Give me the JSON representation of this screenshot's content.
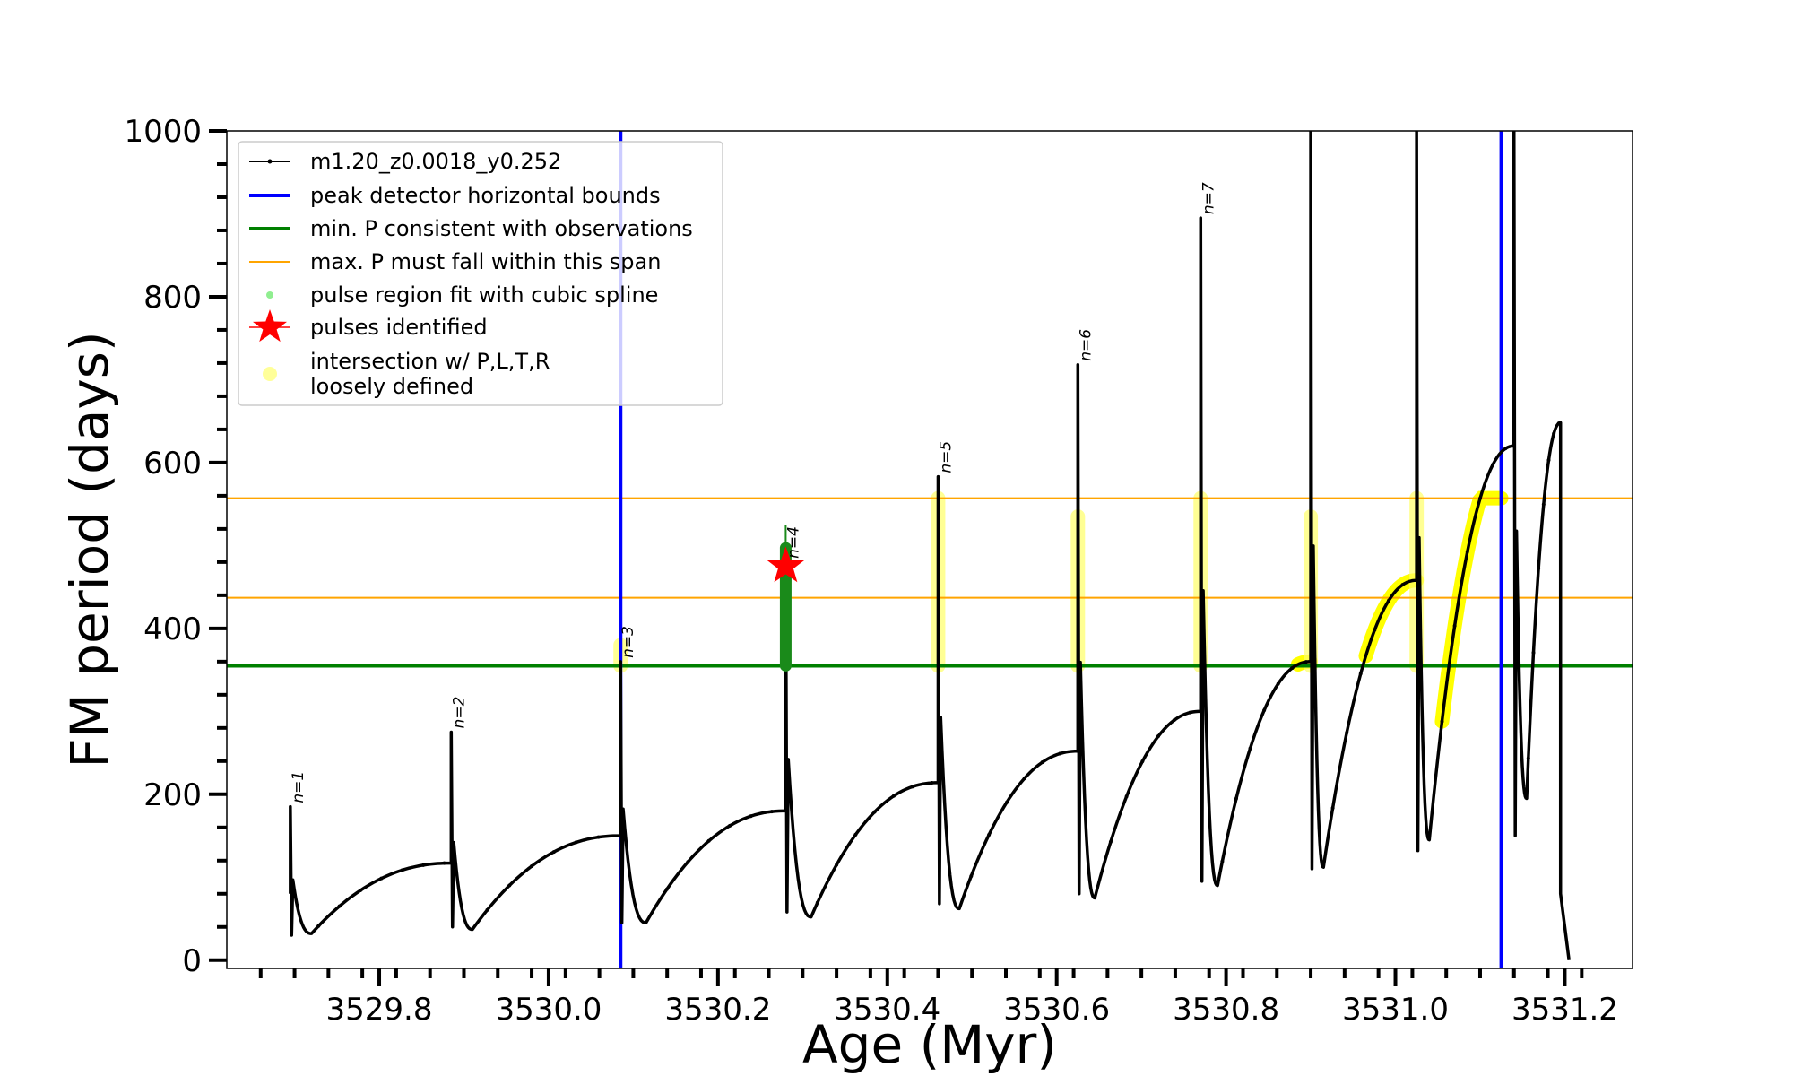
{
  "chart_data": {
    "type": "line",
    "title": "",
    "xlabel": "Age (Myr)",
    "ylabel": "FM period (days)",
    "xlim": [
      3529.62,
      3531.28
    ],
    "ylim": [
      -10,
      1000
    ],
    "x_ticks": [
      3529.8,
      3530.0,
      3530.2,
      3530.4,
      3530.6,
      3530.8,
      3531.0,
      3531.2
    ],
    "x_tick_labels": [
      "3529.8",
      "3530.0",
      "3530.2",
      "3530.4",
      "3530.6",
      "3530.8",
      "3531.0",
      "3531.2"
    ],
    "y_ticks": [
      0,
      200,
      400,
      600,
      800,
      1000
    ],
    "y_tick_labels": [
      "0",
      "200",
      "400",
      "600",
      "800",
      "1000"
    ],
    "grid": false,
    "legend_position": "top-left",
    "legend": [
      {
        "label": "m1.20_z0.0018_y0.252",
        "marker": "line-dot",
        "color": "#000000"
      },
      {
        "label": "peak detector horizontal bounds",
        "marker": "line",
        "color": "#0000ff"
      },
      {
        "label": "min. P consistent with observations",
        "marker": "line",
        "color": "#008000"
      },
      {
        "label": "max. P must fall within this span",
        "marker": "thin-line",
        "color": "#ffa500"
      },
      {
        "label": "pulse region fit with cubic spline",
        "marker": "dot",
        "color": "#90ee90"
      },
      {
        "label": "pulses identified",
        "marker": "star",
        "color": "#ff0000"
      },
      {
        "label": "intersection w/ P,L,T,R",
        "label2": "loosely defined",
        "marker": "dot",
        "color": "#ffff99"
      }
    ],
    "series_name": "m1.20_z0.0018_y0.252",
    "series_color": "#000000",
    "pulses": [
      {
        "label": "n=1",
        "x": 3529.695,
        "peak": 185,
        "floor": 30,
        "recovery_x": 3529.72,
        "min_y": 32,
        "end_x": 3529.885,
        "end_y": 117
      },
      {
        "label": "n=2",
        "x": 3529.885,
        "peak": 275,
        "floor": 40,
        "recovery_x": 3529.91,
        "min_y": 37,
        "end_x": 3530.085,
        "end_y": 150
      },
      {
        "label": "n=3",
        "x": 3530.085,
        "peak": 360,
        "floor": 45,
        "recovery_x": 3530.115,
        "min_y": 45,
        "end_x": 3530.28,
        "end_y": 180
      },
      {
        "label": "n=4",
        "x": 3530.28,
        "peak": 480,
        "floor": 58,
        "recovery_x": 3530.31,
        "min_y": 52,
        "end_x": 3530.46,
        "end_y": 214
      },
      {
        "label": "n=5",
        "x": 3530.46,
        "peak": 583,
        "floor": 68,
        "recovery_x": 3530.485,
        "min_y": 62,
        "end_x": 3530.625,
        "end_y": 252
      },
      {
        "label": "n=6",
        "x": 3530.625,
        "peak": 718,
        "floor": 80,
        "recovery_x": 3530.645,
        "min_y": 75,
        "end_x": 3530.77,
        "end_y": 300
      },
      {
        "label": "n=7",
        "x": 3530.77,
        "peak": 895,
        "floor": 95,
        "recovery_x": 3530.79,
        "min_y": 90,
        "end_x": 3530.9,
        "end_y": 360
      },
      {
        "label": "",
        "x": 3530.9,
        "peak": 1000,
        "floor": 110,
        "recovery_x": 3530.915,
        "min_y": 112,
        "end_x": 3531.025,
        "end_y": 458
      },
      {
        "label": "",
        "x": 3531.025,
        "peak": 1000,
        "floor": 132,
        "recovery_x": 3531.04,
        "min_y": 145,
        "end_x": 3531.14,
        "end_y": 620
      },
      {
        "label": "",
        "x": 3531.14,
        "peak": 1000,
        "floor": 150,
        "recovery_x": 3531.155,
        "min_y": 195,
        "end_x": 3531.195,
        "end_y": 648
      }
    ],
    "final_drop": {
      "x": 3531.195,
      "to_x": 3531.205,
      "to_y": 0
    },
    "blue_vlines_x": [
      3530.085,
      3531.125
    ],
    "green_hline_y": 355,
    "orange_hlines_y": [
      437,
      557
    ],
    "red_star": {
      "x": 3530.28,
      "y": 475
    },
    "green_spline_region": {
      "x": 3530.28,
      "y_from": 355,
      "y_to": 497
    },
    "yellow_vertical_regions": [
      {
        "x": 3530.085,
        "y_from": 355,
        "y_to": 380
      },
      {
        "x": 3530.46,
        "y_from": 355,
        "y_to": 557
      },
      {
        "x": 3530.625,
        "y_from": 355,
        "y_to": 535
      },
      {
        "x": 3530.77,
        "y_from": 355,
        "y_to": 557
      },
      {
        "x": 3530.9,
        "y_from": 355,
        "y_to": 535
      },
      {
        "x": 3531.025,
        "y_from": 355,
        "y_to": 557
      }
    ],
    "yellow_curve_segments": [
      {
        "x_from": 3530.885,
        "x_to": 3530.905
      },
      {
        "x_from": 3530.965,
        "x_to": 3531.025
      },
      {
        "x_from": 3531.055,
        "x_to": 3531.125
      }
    ]
  }
}
